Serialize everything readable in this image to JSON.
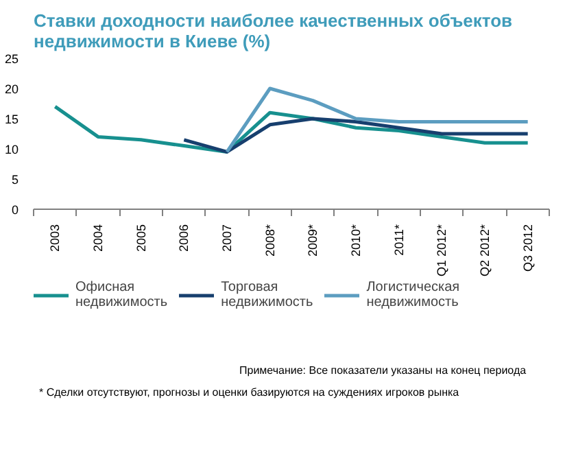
{
  "chart_data": {
    "type": "line",
    "title": "Ставки доходности наиболее качественных объектов недвижимости в Киеве (%)",
    "categories": [
      "2003",
      "2004",
      "2005",
      "2006",
      "2007",
      "2008*",
      "2009*",
      "2010*",
      "2011*",
      "Q1 2012*",
      "Q2 2012*",
      "Q3 2012"
    ],
    "series": [
      {
        "name": "Офисная недвижимость",
        "color": "#17908f",
        "values": [
          17,
          12,
          11.5,
          10.5,
          9.5,
          16,
          15,
          13.5,
          13,
          12,
          11,
          11
        ]
      },
      {
        "name": "Торговая недвижимость",
        "color": "#173f6e",
        "values": [
          null,
          null,
          null,
          11.5,
          9.5,
          14,
          15,
          14.5,
          13.5,
          12.5,
          12.5,
          12.5
        ]
      },
      {
        "name": "Логистическая недвижимость",
        "color": "#5c9dc0",
        "values": [
          null,
          null,
          null,
          null,
          9.5,
          20,
          18,
          15,
          14.5,
          14.5,
          14.5,
          14.5
        ]
      }
    ],
    "ylim": [
      0,
      25
    ],
    "yticks": [
      0,
      5,
      10,
      15,
      20,
      25
    ],
    "grid": false,
    "legend": "bottom",
    "line_style": "solid",
    "marker": "none",
    "annotations": [
      "Примечание: Все показатели указаны на конец периода",
      "* Сделки отсутствуют, прогнозы и оценки базируются на суждениях игроков рынка"
    ]
  }
}
